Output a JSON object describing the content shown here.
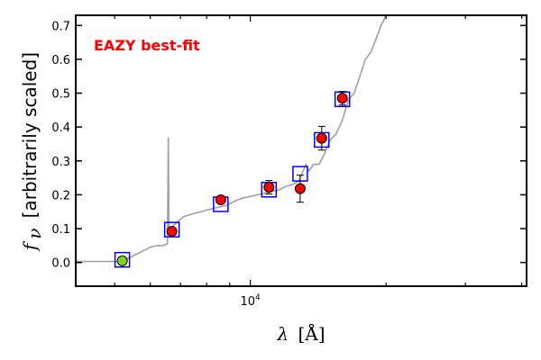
{
  "chart_data": {
    "type": "scatter",
    "annotation": "EAZY best-fit",
    "annotation_color": "#ff0000",
    "xlabel_sym": "λ",
    "xlabel_unit": "[Å]",
    "ylabel_sym": "f",
    "ylabel_sub": "ν",
    "ylabel_text": "[arbitrarily scaled]",
    "x_scale": "log",
    "xlim": [
      4100,
      41000
    ],
    "ylim": [
      -0.07,
      0.73
    ],
    "yticks": [
      0.0,
      0.1,
      0.2,
      0.3,
      0.4,
      0.5,
      0.6,
      0.7
    ],
    "ytick_labels": [
      "0.0",
      "0.1",
      "0.2",
      "0.3",
      "0.4",
      "0.5",
      "0.6",
      "0.7"
    ],
    "xtick_labels": [
      {
        "value": 10000,
        "base": "10",
        "exp": "4"
      }
    ],
    "colors": {
      "template": "#a0a0a0",
      "model_box": "#0000ff",
      "obs_fill": "#ff0000",
      "obs_fill_first": "#7fd11b",
      "marker_edge": "#000000",
      "errbar": "#000000"
    },
    "template_line": {
      "x": [
        4100,
        4300,
        4600,
        4950,
        5150,
        5300,
        5500,
        5700,
        6000,
        6200,
        6400,
        6550,
        6580,
        6600,
        6700,
        6900,
        7100,
        7300,
        7500,
        7800,
        8000,
        8300,
        8600,
        8900,
        9200,
        9600,
        10000,
        10400,
        10800,
        11200,
        11600,
        12000,
        12400,
        12800,
        13100,
        13300,
        13500,
        13800,
        14200,
        14600,
        15000,
        15500,
        16000,
        16500,
        17000,
        17500,
        18000,
        18500,
        19000,
        19500,
        20000
      ],
      "y": [
        0.003,
        0.003,
        0.003,
        0.003,
        0.003,
        0.008,
        0.02,
        0.03,
        0.045,
        0.05,
        0.05,
        0.055,
        0.37,
        0.09,
        0.105,
        0.12,
        0.135,
        0.14,
        0.145,
        0.15,
        0.155,
        0.16,
        0.165,
        0.17,
        0.18,
        0.19,
        0.195,
        0.2,
        0.205,
        0.21,
        0.215,
        0.225,
        0.23,
        0.24,
        0.27,
        0.29,
        0.27,
        0.29,
        0.29,
        0.32,
        0.36,
        0.38,
        0.42,
        0.48,
        0.5,
        0.55,
        0.6,
        0.62,
        0.66,
        0.7,
        0.73
      ]
    },
    "model_points": [
      {
        "x": 5200,
        "y": 0.008
      },
      {
        "x": 6700,
        "y": 0.097
      },
      {
        "x": 8600,
        "y": 0.172
      },
      {
        "x": 11000,
        "y": 0.215
      },
      {
        "x": 12900,
        "y": 0.262
      },
      {
        "x": 14400,
        "y": 0.362
      },
      {
        "x": 16000,
        "y": 0.482
      }
    ],
    "obs_points": [
      {
        "x": 5200,
        "y": 0.005,
        "err": 0.0
      },
      {
        "x": 6700,
        "y": 0.092,
        "err": 0.005
      },
      {
        "x": 8600,
        "y": 0.185,
        "err": 0.008
      },
      {
        "x": 11000,
        "y": 0.222,
        "err": 0.02
      },
      {
        "x": 12900,
        "y": 0.218,
        "err": 0.04
      },
      {
        "x": 14400,
        "y": 0.367,
        "err": 0.035
      },
      {
        "x": 16000,
        "y": 0.485,
        "err": 0.02
      }
    ]
  }
}
